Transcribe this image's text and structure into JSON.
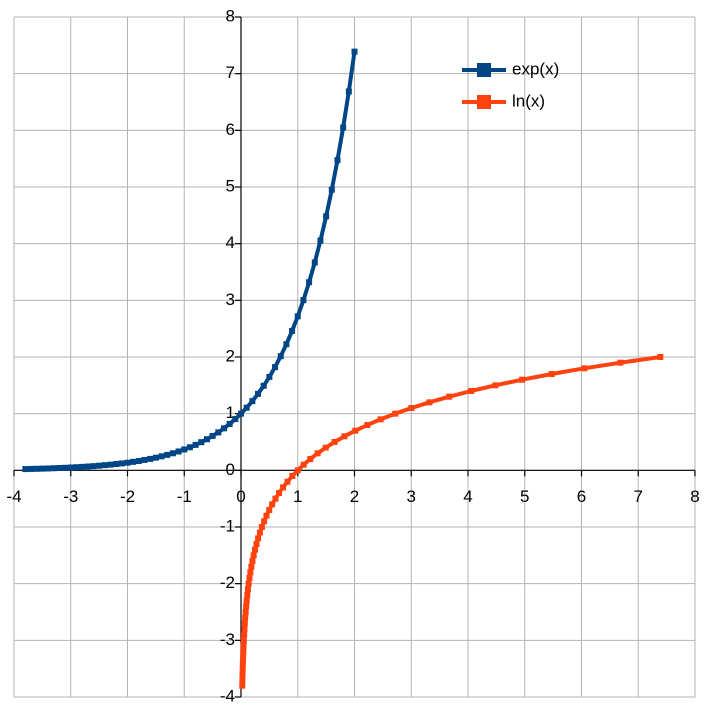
{
  "chart_data": {
    "type": "scatter",
    "xlim": [
      -4,
      8
    ],
    "ylim": [
      -4,
      8
    ],
    "xticks": [
      -4,
      -3,
      -2,
      -1,
      0,
      1,
      2,
      3,
      4,
      5,
      6,
      7,
      8
    ],
    "yticks": [
      -4,
      -3,
      -2,
      -1,
      0,
      1,
      2,
      3,
      4,
      5,
      6,
      7,
      8
    ],
    "grid": true,
    "legend": "top-right",
    "series": [
      {
        "name": "exp(x)",
        "color": "#004586",
        "x": [
          -3.8,
          -3.7,
          -3.6,
          -3.5,
          -3.4,
          -3.3,
          -3.2,
          -3.1,
          -3.0,
          -2.9,
          -2.8,
          -2.7,
          -2.6,
          -2.5,
          -2.4,
          -2.3,
          -2.2,
          -2.1,
          -2.0,
          -1.9,
          -1.8,
          -1.7,
          -1.6,
          -1.5,
          -1.4,
          -1.3,
          -1.2,
          -1.1,
          -1.0,
          -0.9,
          -0.8,
          -0.7,
          -0.6,
          -0.5,
          -0.4,
          -0.3,
          -0.2,
          -0.1,
          0,
          0.1,
          0.2,
          0.3,
          0.4,
          0.5,
          0.6,
          0.7,
          0.8,
          0.9,
          1.0,
          1.1,
          1.2,
          1.3,
          1.4,
          1.5,
          1.6,
          1.7,
          1.8,
          1.9,
          2.0
        ],
        "values": [
          0.022,
          0.025,
          0.027,
          0.03,
          0.033,
          0.037,
          0.041,
          0.045,
          0.05,
          0.055,
          0.061,
          0.067,
          0.074,
          0.082,
          0.091,
          0.1,
          0.111,
          0.122,
          0.135,
          0.15,
          0.165,
          0.183,
          0.202,
          0.223,
          0.247,
          0.273,
          0.301,
          0.333,
          0.368,
          0.407,
          0.449,
          0.497,
          0.549,
          0.607,
          0.67,
          0.741,
          0.819,
          0.905,
          1,
          1.105,
          1.221,
          1.35,
          1.492,
          1.649,
          1.822,
          2.014,
          2.226,
          2.46,
          2.718,
          3.004,
          3.32,
          3.669,
          4.055,
          4.482,
          4.953,
          5.474,
          6.05,
          6.686,
          7.389
        ]
      },
      {
        "name": "ln(x)",
        "color": "#ff420e",
        "x": [
          0.022,
          0.025,
          0.027,
          0.03,
          0.033,
          0.037,
          0.041,
          0.045,
          0.05,
          0.055,
          0.061,
          0.067,
          0.074,
          0.082,
          0.091,
          0.1,
          0.111,
          0.122,
          0.135,
          0.15,
          0.165,
          0.183,
          0.202,
          0.223,
          0.247,
          0.273,
          0.301,
          0.333,
          0.368,
          0.407,
          0.449,
          0.497,
          0.549,
          0.607,
          0.67,
          0.741,
          0.819,
          0.905,
          1,
          1.105,
          1.221,
          1.35,
          1.492,
          1.649,
          1.822,
          2.014,
          2.226,
          2.46,
          2.718,
          3.004,
          3.32,
          3.669,
          4.055,
          4.482,
          4.953,
          5.474,
          6.05,
          6.686,
          7.389
        ],
        "values": [
          -3.8,
          -3.7,
          -3.6,
          -3.5,
          -3.4,
          -3.3,
          -3.2,
          -3.1,
          -3.0,
          -2.9,
          -2.8,
          -2.7,
          -2.6,
          -2.5,
          -2.4,
          -2.3,
          -2.2,
          -2.1,
          -2.0,
          -1.9,
          -1.8,
          -1.7,
          -1.6,
          -1.5,
          -1.4,
          -1.3,
          -1.2,
          -1.1,
          -1.0,
          -0.9,
          -0.8,
          -0.7,
          -0.6,
          -0.5,
          -0.4,
          -0.3,
          -0.2,
          -0.1,
          0,
          0.1,
          0.2,
          0.3,
          0.4,
          0.5,
          0.6,
          0.7,
          0.8,
          0.9,
          1.0,
          1.1,
          1.2,
          1.3,
          1.4,
          1.5,
          1.6,
          1.7,
          1.8,
          1.9,
          2.0
        ]
      }
    ]
  }
}
